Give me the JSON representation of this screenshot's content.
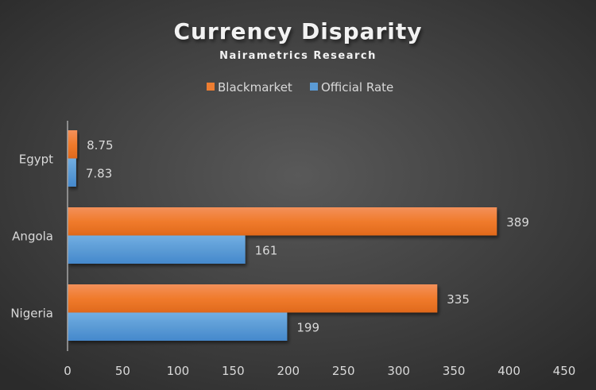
{
  "chart_data": {
    "type": "bar",
    "orientation": "horizontal",
    "title": "Currency Disparity",
    "subtitle": "Nairametrics Research",
    "categories": [
      "Egypt",
      "Angola",
      "Nigeria"
    ],
    "series": [
      {
        "name": "Blackmarket",
        "color": "#ed7d31",
        "values": [
          8.75,
          389,
          335
        ],
        "labels": [
          "8.75",
          "389",
          "335"
        ]
      },
      {
        "name": "Official Rate",
        "color": "#5b9bd5",
        "values": [
          7.83,
          161,
          199
        ],
        "labels": [
          "7.83",
          "161",
          "199"
        ]
      }
    ],
    "xlim": [
      0,
      450
    ],
    "xticks": [
      "0",
      "50",
      "100",
      "150",
      "200",
      "250",
      "300",
      "350",
      "400",
      "450"
    ],
    "legend": "top-center",
    "grid": false
  }
}
